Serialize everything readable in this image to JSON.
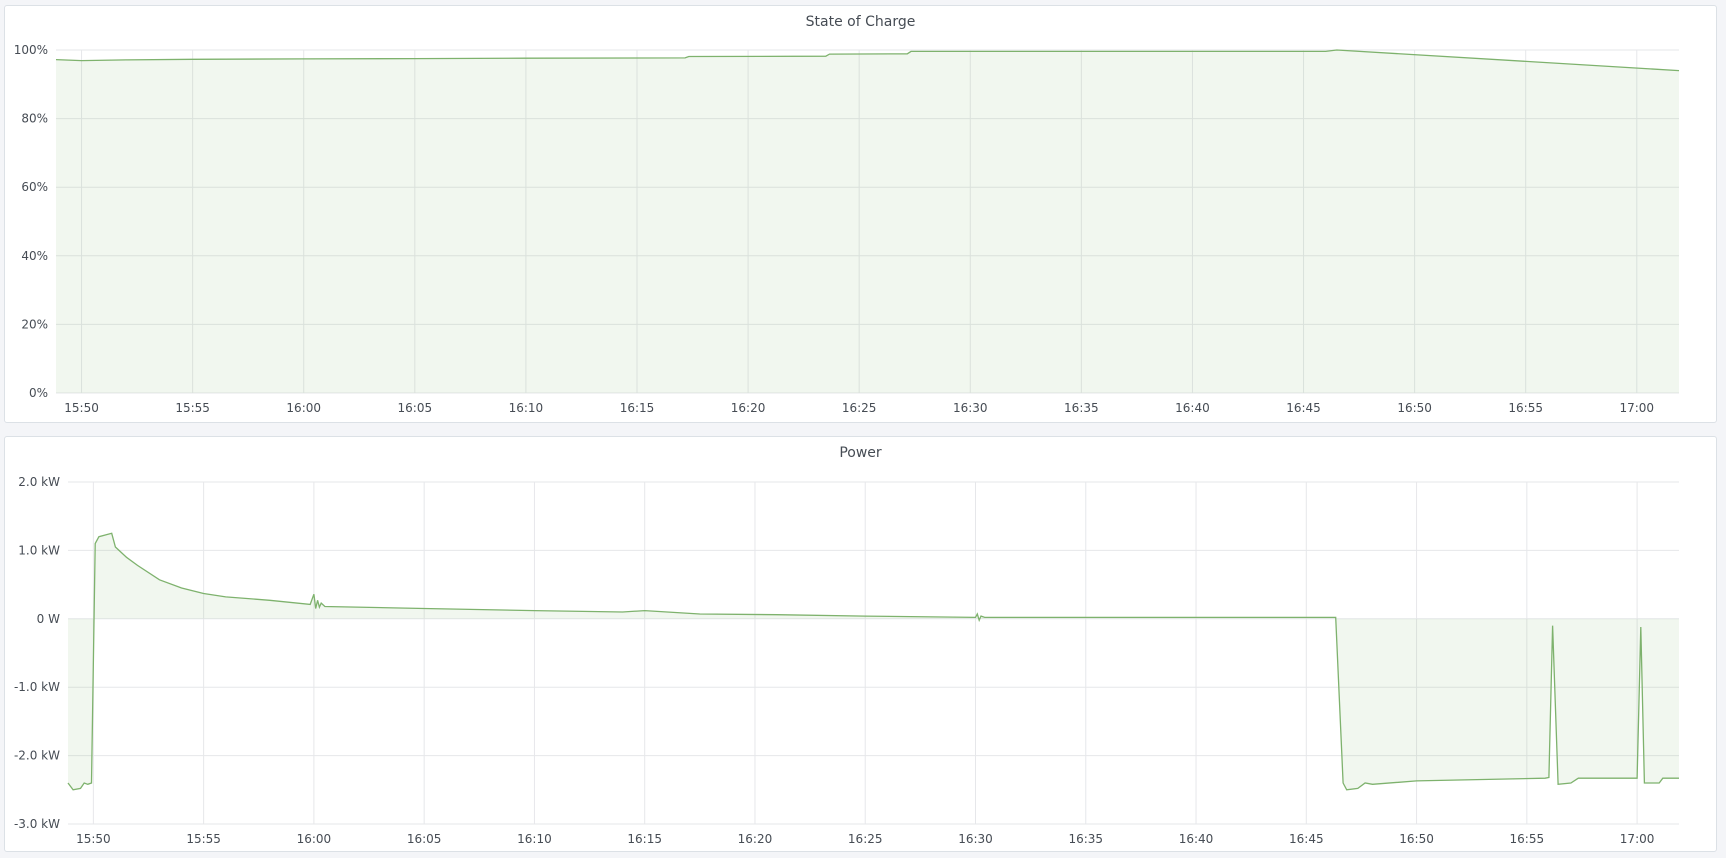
{
  "colors": {
    "line": "#7eb26d",
    "fill": "rgba(126,178,109,0.11)",
    "grid": "#e6e7ea"
  },
  "chart_data": [
    {
      "type": "area",
      "title": "State of Charge",
      "xlim": [
        "15:48:51",
        "17:01:54"
      ],
      "ylim": [
        0,
        100
      ],
      "grid": true,
      "x_ticks": [
        "15:50",
        "15:55",
        "16:00",
        "16:05",
        "16:10",
        "16:15",
        "16:20",
        "16:25",
        "16:30",
        "16:35",
        "16:40",
        "16:45",
        "16:50",
        "16:55",
        "17:00"
      ],
      "y_ticks": [
        {
          "value": 0,
          "label": "0%"
        },
        {
          "value": 20,
          "label": "20%"
        },
        {
          "value": 40,
          "label": "40%"
        },
        {
          "value": 60,
          "label": "60%"
        },
        {
          "value": 80,
          "label": "80%"
        },
        {
          "value": 100,
          "label": "100%"
        }
      ],
      "series": [
        {
          "x": [
            "15:48:51",
            "15:50:00",
            "15:52:00",
            "15:55:00",
            "16:00:00",
            "16:05:00",
            "16:10:00",
            "16:17:10",
            "16:17:20",
            "16:23:30",
            "16:23:40",
            "16:27:10",
            "16:27:20",
            "16:46:00",
            "16:46:30",
            "17:01:54"
          ],
          "y": [
            97.2,
            96.9,
            97.1,
            97.3,
            97.4,
            97.5,
            97.6,
            97.7,
            98.1,
            98.2,
            98.8,
            98.9,
            99.6,
            99.6,
            100,
            94.0
          ]
        }
      ]
    },
    {
      "type": "area",
      "title": "Power",
      "xlim": [
        "15:48:51",
        "17:01:54"
      ],
      "ylim": [
        -3,
        2
      ],
      "grid": true,
      "x_ticks": [
        "15:50",
        "15:55",
        "16:00",
        "16:05",
        "16:10",
        "16:15",
        "16:20",
        "16:25",
        "16:30",
        "16:35",
        "16:40",
        "16:45",
        "16:50",
        "16:55",
        "17:00"
      ],
      "y_ticks": [
        {
          "value": -3,
          "label": "-3.0 kW"
        },
        {
          "value": -2,
          "label": "-2.0 kW"
        },
        {
          "value": -1,
          "label": "-1.0 kW"
        },
        {
          "value": 0,
          "label": "0 W"
        },
        {
          "value": 1,
          "label": "1.0 kW"
        },
        {
          "value": 2,
          "label": "2.0 kW"
        }
      ],
      "series": [
        {
          "x": [
            "15:48:51",
            "15:49:05",
            "15:49:25",
            "15:49:35",
            "15:49:45",
            "15:49:55",
            "15:50:05",
            "15:50:15",
            "15:50:50",
            "15:51:00",
            "15:51:30",
            "15:52:00",
            "15:53:00",
            "15:54:00",
            "15:55:00",
            "15:56:00",
            "15:58:00",
            "15:59:50",
            "16:00:00",
            "16:00:05",
            "16:00:10",
            "16:00:15",
            "16:00:20",
            "16:00:30",
            "16:05:00",
            "16:10:00",
            "16:14:00",
            "16:15:00",
            "16:17:30",
            "16:21:00",
            "16:25:00",
            "16:30:00",
            "16:30:05",
            "16:30:10",
            "16:30:15",
            "16:30:25",
            "16:35:00",
            "16:46:20",
            "16:46:40",
            "16:46:50",
            "16:47:20",
            "16:47:40",
            "16:48:00",
            "16:50:00",
            "16:55:50",
            "16:56:00",
            "16:56:10",
            "16:56:25",
            "16:57:00",
            "16:57:20",
            "17:00:00",
            "17:00:10",
            "17:00:20",
            "17:01:00",
            "17:01:10",
            "17:01:54"
          ],
          "y": [
            -2.4,
            -2.5,
            -2.48,
            -2.4,
            -2.42,
            -2.4,
            1.1,
            1.2,
            1.25,
            1.05,
            0.9,
            0.78,
            0.57,
            0.45,
            0.37,
            0.32,
            0.27,
            0.21,
            0.36,
            0.15,
            0.27,
            0.17,
            0.23,
            0.18,
            0.15,
            0.12,
            0.1,
            0.12,
            0.07,
            0.06,
            0.04,
            0.02,
            0.07,
            -0.02,
            0.04,
            0.02,
            0.02,
            0.02,
            -2.4,
            -2.5,
            -2.48,
            -2.4,
            -2.42,
            -2.37,
            -2.33,
            -2.32,
            -0.1,
            -2.42,
            -2.4,
            -2.33,
            -2.33,
            -0.12,
            -2.4,
            -2.4,
            -2.33,
            -2.33
          ]
        }
      ]
    }
  ]
}
